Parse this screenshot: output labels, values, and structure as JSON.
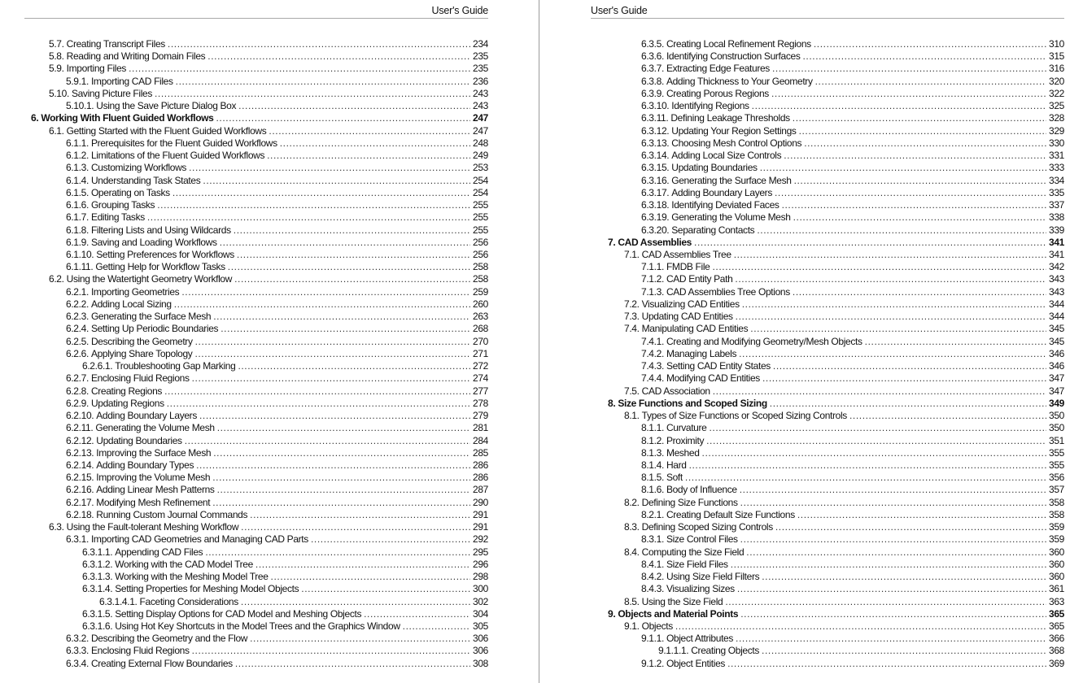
{
  "pages": [
    {
      "header": "User's Guide",
      "entries": [
        {
          "level": 1,
          "num": "5.7.",
          "title": "Creating Transcript Files",
          "page": "234"
        },
        {
          "level": 1,
          "num": "5.8.",
          "title": "Reading and Writing Domain Files",
          "page": "235"
        },
        {
          "level": 1,
          "num": "5.9.",
          "title": "Importing Files",
          "page": "235"
        },
        {
          "level": 2,
          "num": "5.9.1.",
          "title": "Importing CAD Files",
          "page": "236"
        },
        {
          "level": 1,
          "num": "5.10.",
          "title": "Saving Picture Files",
          "page": "243"
        },
        {
          "level": 2,
          "num": "5.10.1.",
          "title": "Using the Save Picture Dialog Box",
          "page": "243"
        },
        {
          "level": 0,
          "num": "6.",
          "title": "Working With Fluent Guided Workflows",
          "page": "247"
        },
        {
          "level": 1,
          "num": "6.1.",
          "title": "Getting Started with the Fluent Guided Workflows",
          "page": "247"
        },
        {
          "level": 2,
          "num": "6.1.1.",
          "title": "Prerequisites for the Fluent Guided Workflows",
          "page": "248"
        },
        {
          "level": 2,
          "num": "6.1.2.",
          "title": "Limitations of the Fluent Guided Workflows",
          "page": "249"
        },
        {
          "level": 2,
          "num": "6.1.3.",
          "title": "Customizing Workflows",
          "page": "253"
        },
        {
          "level": 2,
          "num": "6.1.4.",
          "title": "Understanding Task States",
          "page": "254"
        },
        {
          "level": 2,
          "num": "6.1.5.",
          "title": "Operating on Tasks",
          "page": "254"
        },
        {
          "level": 2,
          "num": "6.1.6.",
          "title": "Grouping Tasks",
          "page": "255"
        },
        {
          "level": 2,
          "num": "6.1.7.",
          "title": "Editing Tasks",
          "page": "255"
        },
        {
          "level": 2,
          "num": "6.1.8.",
          "title": "Filtering Lists and Using Wildcards",
          "page": "255"
        },
        {
          "level": 2,
          "num": "6.1.9.",
          "title": "Saving and Loading Workflows",
          "page": "256"
        },
        {
          "level": 2,
          "num": "6.1.10.",
          "title": "Setting Preferences for Workflows",
          "page": "256"
        },
        {
          "level": 2,
          "num": "6.1.11.",
          "title": "Getting Help for Workflow Tasks",
          "page": "258"
        },
        {
          "level": 1,
          "num": "6.2.",
          "title": "Using the Watertight Geometry Workflow",
          "page": "258"
        },
        {
          "level": 2,
          "num": "6.2.1.",
          "title": "Importing Geometries",
          "page": "259"
        },
        {
          "level": 2,
          "num": "6.2.2.",
          "title": "Adding Local Sizing",
          "page": "260"
        },
        {
          "level": 2,
          "num": "6.2.3.",
          "title": "Generating the Surface Mesh",
          "page": "263"
        },
        {
          "level": 2,
          "num": "6.2.4.",
          "title": "Setting Up Periodic Boundaries",
          "page": "268"
        },
        {
          "level": 2,
          "num": "6.2.5.",
          "title": "Describing the Geometry",
          "page": "270"
        },
        {
          "level": 2,
          "num": "6.2.6.",
          "title": "Applying Share Topology",
          "page": "271"
        },
        {
          "level": 3,
          "num": "6.2.6.1.",
          "title": "Troubleshooting Gap Marking",
          "page": "272"
        },
        {
          "level": 2,
          "num": "6.2.7.",
          "title": "Enclosing Fluid Regions",
          "page": "274"
        },
        {
          "level": 2,
          "num": "6.2.8.",
          "title": "Creating Regions",
          "page": "277"
        },
        {
          "level": 2,
          "num": "6.2.9.",
          "title": "Updating Regions",
          "page": "278"
        },
        {
          "level": 2,
          "num": "6.2.10.",
          "title": "Adding Boundary Layers",
          "page": "279"
        },
        {
          "level": 2,
          "num": "6.2.11.",
          "title": "Generating the Volume Mesh",
          "page": "281"
        },
        {
          "level": 2,
          "num": "6.2.12.",
          "title": "Updating Boundaries",
          "page": "284"
        },
        {
          "level": 2,
          "num": "6.2.13.",
          "title": "Improving the Surface Mesh",
          "page": "285"
        },
        {
          "level": 2,
          "num": "6.2.14.",
          "title": "Adding Boundary Types",
          "page": "286"
        },
        {
          "level": 2,
          "num": "6.2.15.",
          "title": "Improving the Volume Mesh",
          "page": "286"
        },
        {
          "level": 2,
          "num": "6.2.16.",
          "title": "Adding Linear Mesh Patterns",
          "page": "287"
        },
        {
          "level": 2,
          "num": "6.2.17.",
          "title": "Modifying Mesh Refinement",
          "page": "290"
        },
        {
          "level": 2,
          "num": "6.2.18.",
          "title": "Running Custom Journal Commands",
          "page": "291"
        },
        {
          "level": 1,
          "num": "6.3.",
          "title": "Using the Fault-tolerant Meshing Workflow",
          "page": "291"
        },
        {
          "level": 2,
          "num": "6.3.1.",
          "title": "Importing CAD Geometries and Managing CAD Parts",
          "page": "292"
        },
        {
          "level": 3,
          "num": "6.3.1.1.",
          "title": "Appending CAD Files",
          "page": "295"
        },
        {
          "level": 3,
          "num": "6.3.1.2.",
          "title": "Working with the CAD Model Tree",
          "page": "296"
        },
        {
          "level": 3,
          "num": "6.3.1.3.",
          "title": "Working with the Meshing Model Tree",
          "page": "298"
        },
        {
          "level": 3,
          "num": "6.3.1.4.",
          "title": "Setting Properties for Meshing Model Objects",
          "page": "300"
        },
        {
          "level": 4,
          "num": "6.3.1.4.1.",
          "title": "Faceting Considerations",
          "page": "302"
        },
        {
          "level": 3,
          "num": "6.3.1.5.",
          "title": "Setting Display Options for CAD Model and Meshing Objects",
          "page": "304"
        },
        {
          "level": 3,
          "num": "6.3.1.6.",
          "title": "Using Hot Key Shortcuts in the Model Trees and the Graphics Window",
          "page": "305"
        },
        {
          "level": 2,
          "num": "6.3.2.",
          "title": "Describing the Geometry and the Flow",
          "page": "306"
        },
        {
          "level": 2,
          "num": "6.3.3.",
          "title": "Enclosing Fluid Regions",
          "page": "306"
        },
        {
          "level": 2,
          "num": "6.3.4.",
          "title": "Creating External Flow Boundaries",
          "page": "308"
        }
      ]
    },
    {
      "header": "User's Guide",
      "entries": [
        {
          "level": 2,
          "num": "6.3.5.",
          "title": "Creating Local Refinement Regions",
          "page": "310"
        },
        {
          "level": 2,
          "num": "6.3.6.",
          "title": "Identifying Construction Surfaces",
          "page": "315"
        },
        {
          "level": 2,
          "num": "6.3.7.",
          "title": "Extracting Edge Features",
          "page": "316"
        },
        {
          "level": 2,
          "num": "6.3.8.",
          "title": "Adding Thickness to Your Geometry",
          "page": "320"
        },
        {
          "level": 2,
          "num": "6.3.9.",
          "title": "Creating Porous Regions",
          "page": "322"
        },
        {
          "level": 2,
          "num": "6.3.10.",
          "title": "Identifying Regions",
          "page": "325"
        },
        {
          "level": 2,
          "num": "6.3.11.",
          "title": "Defining Leakage Thresholds",
          "page": "328"
        },
        {
          "level": 2,
          "num": "6.3.12.",
          "title": "Updating Your Region Settings",
          "page": "329"
        },
        {
          "level": 2,
          "num": "6.3.13.",
          "title": "Choosing Mesh Control Options",
          "page": "330"
        },
        {
          "level": 2,
          "num": "6.3.14.",
          "title": "Adding Local Size Controls",
          "page": "331"
        },
        {
          "level": 2,
          "num": "6.3.15.",
          "title": "Updating Boundaries",
          "page": "333"
        },
        {
          "level": 2,
          "num": "6.3.16.",
          "title": "Generating the Surface Mesh",
          "page": "334"
        },
        {
          "level": 2,
          "num": "6.3.17.",
          "title": "Adding Boundary Layers",
          "page": "335"
        },
        {
          "level": 2,
          "num": "6.3.18.",
          "title": "Identifying Deviated Faces",
          "page": "337"
        },
        {
          "level": 2,
          "num": "6.3.19.",
          "title": "Generating the Volume Mesh",
          "page": "338"
        },
        {
          "level": 2,
          "num": "6.3.20.",
          "title": "Separating Contacts",
          "page": "339"
        },
        {
          "level": 0,
          "num": "7.",
          "title": "CAD Assemblies",
          "page": "341"
        },
        {
          "level": 1,
          "num": "7.1.",
          "title": "CAD Assemblies Tree",
          "page": "341"
        },
        {
          "level": 2,
          "num": "7.1.1.",
          "title": "FMDB File",
          "page": "342"
        },
        {
          "level": 2,
          "num": "7.1.2.",
          "title": "CAD Entity Path",
          "page": "343"
        },
        {
          "level": 2,
          "num": "7.1.3.",
          "title": "CAD Assemblies Tree Options",
          "page": "343"
        },
        {
          "level": 1,
          "num": "7.2.",
          "title": "Visualizing CAD Entities",
          "page": "344"
        },
        {
          "level": 1,
          "num": "7.3.",
          "title": "Updating CAD Entities",
          "page": "344"
        },
        {
          "level": 1,
          "num": "7.4.",
          "title": "Manipulating CAD Entities",
          "page": "345"
        },
        {
          "level": 2,
          "num": "7.4.1.",
          "title": "Creating and Modifying Geometry/Mesh Objects",
          "page": "345"
        },
        {
          "level": 2,
          "num": "7.4.2.",
          "title": "Managing Labels",
          "page": "346"
        },
        {
          "level": 2,
          "num": "7.4.3.",
          "title": "Setting CAD Entity States",
          "page": "346"
        },
        {
          "level": 2,
          "num": "7.4.4.",
          "title": "Modifying CAD Entities",
          "page": "347"
        },
        {
          "level": 1,
          "num": "7.5.",
          "title": "CAD Association",
          "page": "347"
        },
        {
          "level": 0,
          "num": "8.",
          "title": "Size Functions and Scoped Sizing",
          "page": "349"
        },
        {
          "level": 1,
          "num": "8.1.",
          "title": "Types of Size Functions or Scoped Sizing Controls",
          "page": "350"
        },
        {
          "level": 2,
          "num": "8.1.1.",
          "title": "Curvature",
          "page": "350"
        },
        {
          "level": 2,
          "num": "8.1.2.",
          "title": "Proximity",
          "page": "351"
        },
        {
          "level": 2,
          "num": "8.1.3.",
          "title": "Meshed",
          "page": "355"
        },
        {
          "level": 2,
          "num": "8.1.4.",
          "title": "Hard",
          "page": "355"
        },
        {
          "level": 2,
          "num": "8.1.5.",
          "title": "Soft",
          "page": "356"
        },
        {
          "level": 2,
          "num": "8.1.6.",
          "title": "Body of Influence",
          "page": "357"
        },
        {
          "level": 1,
          "num": "8.2.",
          "title": "Defining Size Functions",
          "page": "358"
        },
        {
          "level": 2,
          "num": "8.2.1.",
          "title": "Creating Default Size Functions",
          "page": "358"
        },
        {
          "level": 1,
          "num": "8.3.",
          "title": "Defining Scoped Sizing Controls",
          "page": "359"
        },
        {
          "level": 2,
          "num": "8.3.1.",
          "title": "Size Control Files",
          "page": "359"
        },
        {
          "level": 1,
          "num": "8.4.",
          "title": "Computing the Size Field",
          "page": "360"
        },
        {
          "level": 2,
          "num": "8.4.1.",
          "title": "Size Field Files",
          "page": "360"
        },
        {
          "level": 2,
          "num": "8.4.2.",
          "title": "Using Size Field Filters",
          "page": "360"
        },
        {
          "level": 2,
          "num": "8.4.3.",
          "title": "Visualizing Sizes",
          "page": "361"
        },
        {
          "level": 1,
          "num": "8.5.",
          "title": "Using the Size Field",
          "page": "363"
        },
        {
          "level": 0,
          "num": "9.",
          "title": "Objects and Material Points",
          "page": "365"
        },
        {
          "level": 1,
          "num": "9.1.",
          "title": "Objects",
          "page": "365"
        },
        {
          "level": 2,
          "num": "9.1.1.",
          "title": "Object Attributes",
          "page": "366"
        },
        {
          "level": 3,
          "num": "9.1.1.1.",
          "title": "Creating Objects",
          "page": "368"
        },
        {
          "level": 2,
          "num": "9.1.2.",
          "title": "Object Entities",
          "page": "369"
        }
      ]
    }
  ]
}
